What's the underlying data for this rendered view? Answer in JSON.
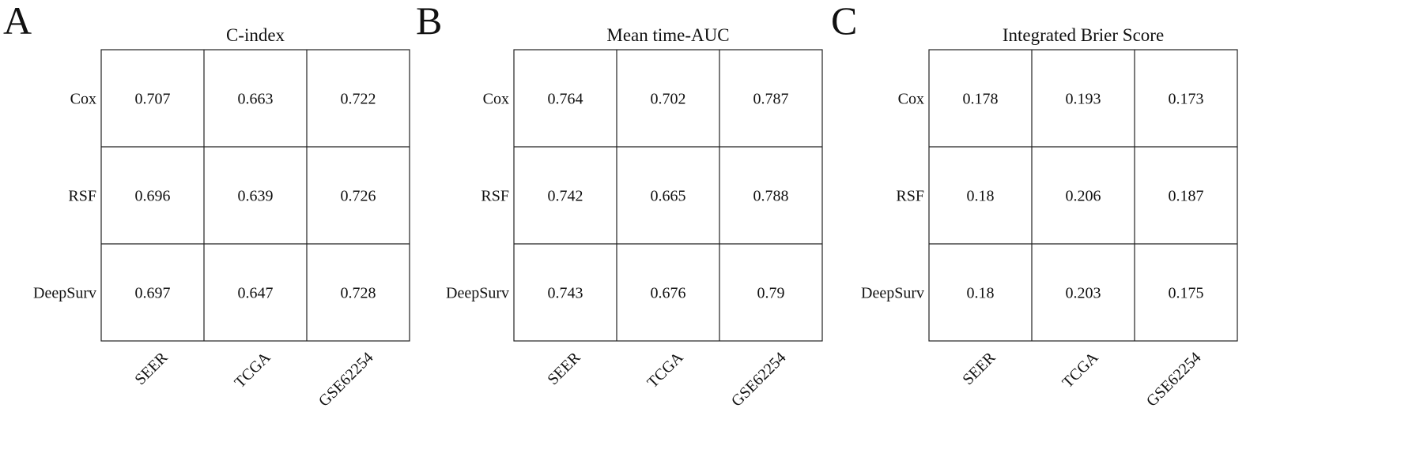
{
  "chart_data": [
    {
      "type": "table",
      "panel_label": "A",
      "title": "C-index",
      "rows": [
        "Cox",
        "RSF",
        "DeepSurv"
      ],
      "columns": [
        "SEER",
        "TCGA",
        "GSE62254"
      ],
      "cells": [
        [
          "0.707",
          "0.663",
          "0.722"
        ],
        [
          "0.696",
          "0.639",
          "0.726"
        ],
        [
          "0.697",
          "0.647",
          "0.728"
        ]
      ]
    },
    {
      "type": "table",
      "panel_label": "B",
      "title": "Mean time-AUC",
      "rows": [
        "Cox",
        "RSF",
        "DeepSurv"
      ],
      "columns": [
        "SEER",
        "TCGA",
        "GSE62254"
      ],
      "cells": [
        [
          "0.764",
          "0.702",
          "0.787"
        ],
        [
          "0.742",
          "0.665",
          "0.788"
        ],
        [
          "0.743",
          "0.676",
          "0.79"
        ]
      ]
    },
    {
      "type": "table",
      "panel_label": "C",
      "title": "Integrated Brier Score",
      "rows": [
        "Cox",
        "RSF",
        "DeepSurv"
      ],
      "columns": [
        "SEER",
        "TCGA",
        "GSE62254"
      ],
      "cells": [
        [
          "0.178",
          "0.193",
          "0.173"
        ],
        [
          "0.18",
          "0.206",
          "0.187"
        ],
        [
          "0.18",
          "0.203",
          "0.175"
        ]
      ]
    }
  ]
}
